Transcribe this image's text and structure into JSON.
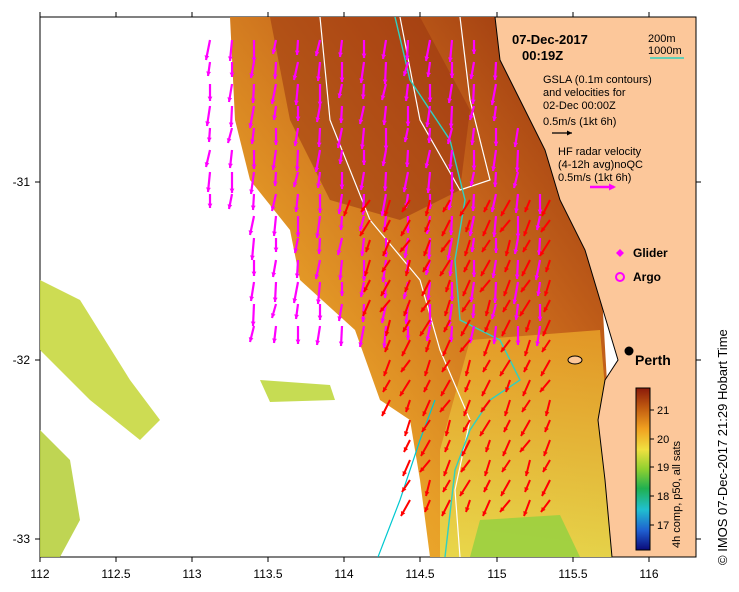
{
  "map": {
    "date": "07-Dec-2017",
    "time": "00:19Z",
    "depth_legend": {
      "shallow": "200m",
      "deep": "1000m"
    },
    "gsla": {
      "line1": "GSLA (0.1m contours)",
      "line2": "and velocities for",
      "line3": "02-Dec 00:00Z",
      "scale": "0.5m/s (1kt 6h)"
    },
    "hf_radar": {
      "line1": "HF radar velocity",
      "line2": "(4-12h avg)noQC",
      "scale": "0.5m/s (1kt 6h)"
    },
    "markers": {
      "glider": "Glider",
      "argo": "Argo"
    },
    "city": "Perth",
    "credit": "IMOS 07-Dec-2017 21:29 Hobart Time",
    "colorbar": {
      "label": "4h comp, p50, all sats",
      "ticks": [
        "21",
        "20",
        "19",
        "18",
        "17"
      ]
    },
    "x_ticks": [
      "112",
      "112.5",
      "113",
      "113.5",
      "114",
      "114.5",
      "115",
      "115.5",
      "116"
    ],
    "y_ticks": [
      "-31",
      "-32",
      "-33"
    ],
    "colors": {
      "land": "#fcc79a",
      "radar_arrow": "#ff00ff",
      "gsla_arrow": "#ff0000",
      "isobath_200m": "#ffffff",
      "isobath_1000m": "#30d0c0"
    }
  }
}
